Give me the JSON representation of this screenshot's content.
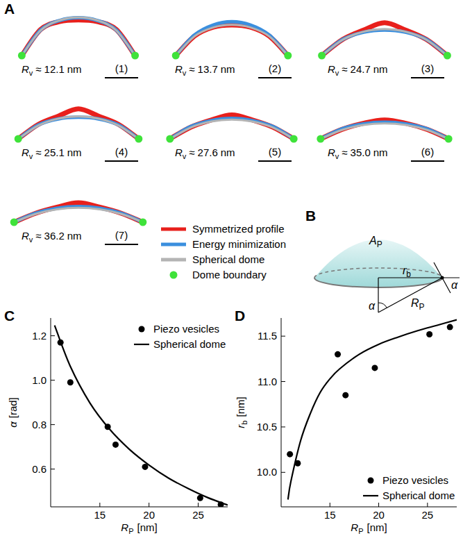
{
  "panel_labels": [
    "A",
    "B",
    "C",
    "D"
  ],
  "profiles": {
    "label": {
      "base": "R",
      "sub": "v",
      "approx": "≈",
      "unit": "nm"
    },
    "legend": [
      {
        "name": "Symmetrized profile",
        "color": "#e8201c",
        "line_style": "solid"
      },
      {
        "name": "Energy minimization",
        "color": "#3b8fde",
        "line_style": "solid"
      },
      {
        "name": "Spherical dome",
        "color": "#b4b4b4",
        "line_style": "solid"
      },
      {
        "name": "Dome boundary",
        "color": "#3fe23a",
        "marker": "circle"
      }
    ],
    "items": [
      {
        "number": "(1)",
        "rv": 12.1,
        "rb": 10.2,
        "symmetrized": [
          0,
          4.7,
          6.1,
          6.4,
          6.1,
          4.7,
          0
        ],
        "energy": [
          0,
          4.6,
          6.3,
          6.8,
          6.3,
          4.6,
          0
        ],
        "spherical": [
          0,
          4.53,
          6.34,
          6.88,
          6.34,
          4.53,
          0
        ]
      },
      {
        "number": "(2)",
        "rv": 13.7,
        "rb": 10.1,
        "symmetrized": [
          0,
          3.5,
          5.1,
          5.5,
          5.1,
          3.5,
          0
        ],
        "energy": [
          0,
          3.7,
          5.5,
          6.1,
          5.5,
          3.7,
          0
        ],
        "spherical": [
          0,
          3.45,
          5.04,
          5.52,
          5.04,
          3.45,
          0
        ]
      },
      {
        "number": "(3)",
        "rv": 24.7,
        "rb": 11.3,
        "symmetrized": [
          0,
          2.9,
          4.6,
          5.9,
          4.6,
          2.9,
          0
        ],
        "energy": [
          0,
          2.9,
          4.2,
          4.6,
          4.2,
          2.9,
          0
        ],
        "spherical": [
          0,
          2.85,
          4.3,
          4.76,
          4.3,
          2.85,
          0
        ]
      },
      {
        "number": "(4)",
        "rv": 25.1,
        "rb": 10.85,
        "symmetrized": [
          0,
          2.6,
          4.1,
          5.4,
          4.1,
          2.6,
          0
        ],
        "energy": [
          0,
          2.5,
          3.6,
          3.9,
          3.6,
          2.5,
          0
        ],
        "spherical": [
          0,
          2.38,
          3.64,
          4.04,
          3.64,
          2.38,
          0
        ]
      },
      {
        "number": "(5)",
        "rv": 27.6,
        "rb": 11.15,
        "symmetrized": [
          0,
          2.1,
          3.4,
          4.3,
          3.4,
          2.1,
          0
        ],
        "energy": [
          0,
          2.2,
          3.3,
          3.7,
          3.3,
          2.2,
          0
        ],
        "spherical": [
          0,
          2.02,
          3.12,
          3.48,
          3.12,
          2.02,
          0
        ]
      },
      {
        "number": "(6)",
        "rv": {
          "value": 35,
          "label": "35.0"
        },
        "rb": 11.52,
        "symmetrized": [
          0,
          1.7,
          2.8,
          3.4,
          2.8,
          1.7,
          0
        ],
        "energy": [
          0,
          1.8,
          2.7,
          3.0,
          2.7,
          1.8,
          0
        ],
        "spherical": [
          0,
          1.59,
          2.5,
          2.79,
          2.5,
          1.59,
          0
        ]
      },
      {
        "number": "(7)",
        "rv": 36.2,
        "rb": 11.6,
        "symmetrized": [
          0,
          1.6,
          2.7,
          3.5,
          2.7,
          1.6,
          0
        ],
        "energy": [
          0,
          1.6,
          2.5,
          2.8,
          2.5,
          1.6,
          0
        ],
        "spherical": [
          0,
          1.47,
          2.31,
          2.59,
          2.31,
          1.47,
          0
        ]
      }
    ]
  },
  "diagram": {
    "labels": [
      {
        "base": "A",
        "sub": "P"
      },
      {
        "base": "r",
        "sub": "b"
      },
      {
        "base": "α"
      },
      {
        "base": "R",
        "sub": "P"
      },
      {
        "base": "α"
      }
    ]
  },
  "chart_data": [
    {
      "type": "scatter",
      "x_label": {
        "base": "R",
        "sub": "P",
        "unit": "[nm]"
      },
      "y_label": {
        "base": "α",
        "unit": "[rad]"
      },
      "xlim": [
        10,
        28
      ],
      "ylim": [
        0.43,
        1.28
      ],
      "xticks": [
        15,
        20,
        25
      ],
      "yticks": [
        0.6,
        0.8,
        {
          "value": 1,
          "label": "1.0"
        },
        1.2
      ],
      "grid": false,
      "legend": "upper right",
      "series": [
        {
          "name": "Piezo vesicles",
          "type": "scatter",
          "marker": "circle",
          "color": "#000000",
          "x": [
            11.0,
            12.0,
            15.8,
            16.6,
            19.6,
            25.2,
            27.3
          ],
          "values": [
            1.17,
            0.99,
            0.79,
            0.71,
            0.61,
            0.47,
            0.44
          ]
        },
        {
          "name": "Spherical dome",
          "type": "line",
          "line_style": "solid",
          "color": "#000000",
          "x": [
            10.4,
            12,
            14,
            16,
            18,
            20,
            22,
            24,
            26,
            28
          ],
          "values": [
            1.247,
            1.062,
            0.897,
            0.779,
            0.689,
            0.618,
            0.559,
            0.512,
            0.471,
            0.438
          ]
        }
      ]
    },
    {
      "type": "scatter",
      "x_label": {
        "base": "R",
        "sub": "P",
        "unit": "[nm]"
      },
      "y_label": {
        "base": "r",
        "sub": "b",
        "unit": "[nm]"
      },
      "xlim": [
        10,
        28
      ],
      "ylim": [
        9.62,
        11.7
      ],
      "xticks": [
        15,
        20,
        25
      ],
      "yticks": [
        {
          "value": 10,
          "label": "10.0"
        },
        10.5,
        {
          "value": 11,
          "label": "11.0"
        },
        11.5
      ],
      "grid": false,
      "legend": "lower right",
      "series": [
        {
          "name": "Piezo vesicles",
          "type": "scatter",
          "marker": "circle",
          "color": "#000000",
          "x": [
            10.9,
            11.7,
            15.8,
            16.6,
            19.6,
            25.2,
            27.3
          ],
          "values": [
            10.2,
            10.1,
            11.3,
            10.85,
            11.15,
            11.52,
            11.6
          ]
        },
        {
          "name": "Spherical dome",
          "type": "line",
          "line_style": "solid",
          "color": "#000000",
          "x": [
            10.7,
            11,
            12,
            13,
            14,
            15,
            16,
            18,
            20,
            22,
            24,
            26,
            28
          ],
          "values": [
            9.7,
            9.9,
            10.35,
            10.65,
            10.88,
            11.03,
            11.14,
            11.3,
            11.41,
            11.49,
            11.56,
            11.62,
            11.68
          ]
        }
      ]
    }
  ]
}
